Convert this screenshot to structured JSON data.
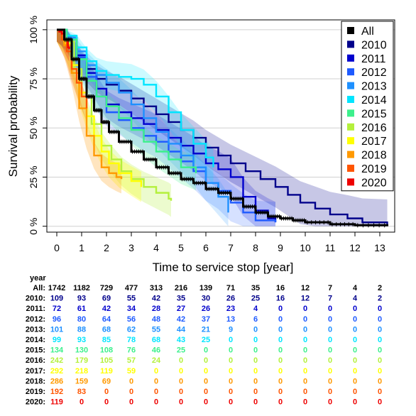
{
  "chart_data": {
    "type": "line",
    "title": "",
    "xlabel": "Time to service stop [year]",
    "ylabel": "Survival probability",
    "xlim": [
      -0.4,
      13.6
    ],
    "ylim": [
      -0.03,
      1.05
    ],
    "x_ticks": [
      0,
      1,
      2,
      3,
      4,
      5,
      6,
      7,
      8,
      9,
      10,
      11,
      12,
      13
    ],
    "x_tick_labels": [
      "0",
      "1",
      "2",
      "3",
      "4",
      "5",
      "6",
      "7",
      "8",
      "9",
      "10",
      "11",
      "12",
      "13"
    ],
    "y_ticks": [
      0,
      0.25,
      0.5,
      0.75,
      1.0
    ],
    "y_tick_labels": [
      "0 %",
      "25 %",
      "50 %",
      "75 %",
      "100 %"
    ],
    "grid": "horizontal",
    "legend_position": "top-right",
    "series": [
      {
        "name": "2010",
        "color": "#00008b",
        "band_opacity": 0.22,
        "points": [
          [
            0,
            1
          ],
          [
            0.4,
            0.96
          ],
          [
            0.8,
            0.86
          ],
          [
            1.2,
            0.8
          ],
          [
            1.6,
            0.75
          ],
          [
            2.0,
            0.72
          ],
          [
            2.5,
            0.69
          ],
          [
            3.0,
            0.65
          ],
          [
            3.5,
            0.61
          ],
          [
            4.0,
            0.57
          ],
          [
            4.5,
            0.53
          ],
          [
            5.0,
            0.49
          ],
          [
            5.5,
            0.45
          ],
          [
            6.0,
            0.4
          ],
          [
            6.5,
            0.36
          ],
          [
            7.0,
            0.32
          ],
          [
            7.6,
            0.28
          ],
          [
            8.2,
            0.24
          ],
          [
            8.8,
            0.2
          ],
          [
            9.3,
            0.16
          ],
          [
            9.8,
            0.12
          ],
          [
            10.4,
            0.09
          ],
          [
            11.0,
            0.06
          ],
          [
            11.7,
            0.04
          ],
          [
            12.3,
            0.02
          ],
          [
            13.3,
            0.01
          ]
        ]
      },
      {
        "name": "2011",
        "color": "#0000cd",
        "band_opacity": 0.2,
        "points": [
          [
            0,
            1
          ],
          [
            0.4,
            0.95
          ],
          [
            0.8,
            0.87
          ],
          [
            1.2,
            0.78
          ],
          [
            1.6,
            0.7
          ],
          [
            2.0,
            0.62
          ],
          [
            2.5,
            0.58
          ],
          [
            3.0,
            0.55
          ],
          [
            3.5,
            0.52
          ],
          [
            4.0,
            0.49
          ],
          [
            4.5,
            0.45
          ],
          [
            5.0,
            0.41
          ],
          [
            5.5,
            0.37
          ],
          [
            6.0,
            0.32
          ],
          [
            6.5,
            0.29
          ],
          [
            7.0,
            0.25
          ],
          [
            7.5,
            0.15
          ],
          [
            8.0,
            0.08
          ],
          [
            8.5,
            0.04
          ],
          [
            8.8,
            0.02
          ]
        ]
      },
      {
        "name": "2012",
        "color": "#1e5aff",
        "band_opacity": 0.18,
        "points": [
          [
            0,
            1
          ],
          [
            0.4,
            0.95
          ],
          [
            0.8,
            0.86
          ],
          [
            1.2,
            0.76
          ],
          [
            1.6,
            0.66
          ],
          [
            2.0,
            0.58
          ],
          [
            2.5,
            0.54
          ],
          [
            3.0,
            0.5
          ],
          [
            3.5,
            0.46
          ],
          [
            4.0,
            0.43
          ],
          [
            4.5,
            0.38
          ],
          [
            5.0,
            0.33
          ],
          [
            5.5,
            0.28
          ],
          [
            6.0,
            0.22
          ],
          [
            6.5,
            0.18
          ],
          [
            7.0,
            0.12
          ],
          [
            7.5,
            0.07
          ],
          [
            8.0,
            0.03
          ],
          [
            8.8,
            0.02
          ]
        ]
      },
      {
        "name": "2013",
        "color": "#1e90ff",
        "band_opacity": 0.18,
        "points": [
          [
            0,
            1
          ],
          [
            0.4,
            0.96
          ],
          [
            0.8,
            0.89
          ],
          [
            1.2,
            0.82
          ],
          [
            1.6,
            0.77
          ],
          [
            2.0,
            0.73
          ],
          [
            2.5,
            0.68
          ],
          [
            3.0,
            0.62
          ],
          [
            3.5,
            0.55
          ],
          [
            4.0,
            0.48
          ],
          [
            4.5,
            0.42
          ],
          [
            5.0,
            0.36
          ],
          [
            5.5,
            0.3
          ],
          [
            6.0,
            0.22
          ],
          [
            6.5,
            0.15
          ],
          [
            6.9,
            0.07
          ]
        ]
      },
      {
        "name": "2014",
        "color": "#00e5ff",
        "band_opacity": 0.2,
        "points": [
          [
            0,
            1
          ],
          [
            0.4,
            0.97
          ],
          [
            0.8,
            0.91
          ],
          [
            1.2,
            0.84
          ],
          [
            1.6,
            0.79
          ],
          [
            2.0,
            0.77
          ],
          [
            2.5,
            0.76
          ],
          [
            3.0,
            0.75
          ],
          [
            3.5,
            0.72
          ],
          [
            4.0,
            0.66
          ],
          [
            4.5,
            0.58
          ],
          [
            5.0,
            0.49
          ],
          [
            5.5,
            0.42
          ],
          [
            6.0,
            0.35
          ],
          [
            6.3,
            0.3
          ]
        ]
      },
      {
        "name": "2015",
        "color": "#3cf08c",
        "band_opacity": 0.22,
        "points": [
          [
            0,
            1
          ],
          [
            0.4,
            0.95
          ],
          [
            0.8,
            0.85
          ],
          [
            1.2,
            0.74
          ],
          [
            1.6,
            0.66
          ],
          [
            2.0,
            0.61
          ],
          [
            2.5,
            0.55
          ],
          [
            3.0,
            0.49
          ],
          [
            3.5,
            0.43
          ],
          [
            4.0,
            0.38
          ],
          [
            4.5,
            0.34
          ],
          [
            5.0,
            0.3
          ],
          [
            5.6,
            0.27
          ]
        ]
      },
      {
        "name": "2016",
        "color": "#b4f03c",
        "band_opacity": 0.25,
        "points": [
          [
            0,
            1
          ],
          [
            0.3,
            0.94
          ],
          [
            0.7,
            0.8
          ],
          [
            1.0,
            0.66
          ],
          [
            1.4,
            0.52
          ],
          [
            1.8,
            0.41
          ],
          [
            2.2,
            0.34
          ],
          [
            2.6,
            0.28
          ],
          [
            3.0,
            0.24
          ],
          [
            3.5,
            0.2
          ],
          [
            4.0,
            0.17
          ],
          [
            4.5,
            0.14
          ],
          [
            4.6,
            0.13
          ]
        ]
      },
      {
        "name": "2017",
        "color": "#ffff00",
        "band_opacity": 0.28,
        "points": [
          [
            0,
            1
          ],
          [
            0.3,
            0.93
          ],
          [
            0.6,
            0.82
          ],
          [
            0.9,
            0.68
          ],
          [
            1.2,
            0.56
          ],
          [
            1.5,
            0.46
          ],
          [
            1.8,
            0.38
          ],
          [
            2.1,
            0.32
          ],
          [
            2.5,
            0.27
          ],
          [
            3.0,
            0.23
          ],
          [
            3.4,
            0.2
          ]
        ]
      },
      {
        "name": "2018",
        "color": "#ff9900",
        "band_opacity": 0.25,
        "points": [
          [
            0,
            1
          ],
          [
            0.3,
            0.92
          ],
          [
            0.6,
            0.78
          ],
          [
            0.9,
            0.6
          ],
          [
            1.2,
            0.46
          ],
          [
            1.5,
            0.36
          ],
          [
            1.8,
            0.3
          ],
          [
            2.1,
            0.27
          ],
          [
            2.4,
            0.25
          ],
          [
            2.6,
            0.24
          ]
        ]
      },
      {
        "name": "2019",
        "color": "#ff5500",
        "band_opacity": 0.25,
        "points": [
          [
            0,
            1
          ],
          [
            0.2,
            0.95
          ],
          [
            0.4,
            0.89
          ],
          [
            0.6,
            0.8
          ],
          [
            0.8,
            0.73
          ],
          [
            1.0,
            0.66
          ],
          [
            1.2,
            0.6
          ]
        ]
      },
      {
        "name": "2020",
        "color": "#ee0000",
        "band_opacity": 0.25,
        "points": [
          [
            0,
            1
          ],
          [
            0.1,
            0.99
          ],
          [
            0.2,
            0.98
          ],
          [
            0.3,
            0.95
          ],
          [
            0.45,
            0.91
          ],
          [
            0.5,
            0.9
          ]
        ]
      },
      {
        "name": "All",
        "color": "#000000",
        "band_opacity": 0,
        "points": [
          [
            0,
            1
          ],
          [
            0.3,
            0.95
          ],
          [
            0.6,
            0.85
          ],
          [
            0.9,
            0.75
          ],
          [
            1.2,
            0.66
          ],
          [
            1.5,
            0.59
          ],
          [
            1.8,
            0.53
          ],
          [
            2.1,
            0.48
          ],
          [
            2.5,
            0.43
          ],
          [
            3.0,
            0.38
          ],
          [
            3.5,
            0.34
          ],
          [
            4.0,
            0.3
          ],
          [
            4.5,
            0.27
          ],
          [
            5.0,
            0.24
          ],
          [
            5.5,
            0.22
          ],
          [
            6.0,
            0.19
          ],
          [
            6.5,
            0.17
          ],
          [
            7.0,
            0.14
          ],
          [
            7.5,
            0.1
          ],
          [
            8.0,
            0.07
          ],
          [
            8.5,
            0.05
          ],
          [
            9.0,
            0.04
          ],
          [
            9.5,
            0.03
          ],
          [
            10.0,
            0.02
          ],
          [
            11.0,
            0.01
          ],
          [
            12.0,
            0.005
          ],
          [
            13.3,
            0.0
          ]
        ]
      }
    ],
    "legend": [
      {
        "name": "All",
        "color": "#000000"
      },
      {
        "name": "2010",
        "color": "#00008b"
      },
      {
        "name": "2011",
        "color": "#0000cd"
      },
      {
        "name": "2012",
        "color": "#1e5aff"
      },
      {
        "name": "2013",
        "color": "#1e90ff"
      },
      {
        "name": "2014",
        "color": "#00e5ff"
      },
      {
        "name": "2015",
        "color": "#3cf08c"
      },
      {
        "name": "2016",
        "color": "#b4f03c"
      },
      {
        "name": "2017",
        "color": "#ffff00"
      },
      {
        "name": "2018",
        "color": "#ff9900"
      },
      {
        "name": "2019",
        "color": "#ff5500"
      },
      {
        "name": "2020",
        "color": "#ee0000"
      }
    ],
    "risk_table": {
      "header": "year",
      "rows": [
        {
          "label": "All:",
          "color": "#000000",
          "values": [
            1742,
            1182,
            729,
            477,
            313,
            216,
            139,
            71,
            35,
            16,
            12,
            7,
            4,
            2
          ]
        },
        {
          "label": "2010:",
          "color": "#00008b",
          "values": [
            109,
            93,
            69,
            55,
            42,
            35,
            30,
            26,
            25,
            16,
            12,
            7,
            4,
            2
          ]
        },
        {
          "label": "2011:",
          "color": "#0000cd",
          "values": [
            72,
            61,
            42,
            34,
            28,
            27,
            26,
            23,
            4,
            0,
            0,
            0,
            0,
            0
          ]
        },
        {
          "label": "2012:",
          "color": "#1e5aff",
          "values": [
            96,
            80,
            64,
            56,
            48,
            42,
            37,
            13,
            6,
            0,
            0,
            0,
            0,
            0
          ]
        },
        {
          "label": "2013:",
          "color": "#1e90ff",
          "values": [
            101,
            88,
            68,
            62,
            55,
            44,
            21,
            9,
            0,
            0,
            0,
            0,
            0,
            0
          ]
        },
        {
          "label": "2014:",
          "color": "#00e5ff",
          "values": [
            99,
            93,
            85,
            78,
            68,
            43,
            25,
            0,
            0,
            0,
            0,
            0,
            0,
            0
          ]
        },
        {
          "label": "2015:",
          "color": "#3cf08c",
          "values": [
            134,
            130,
            108,
            76,
            46,
            25,
            0,
            0,
            0,
            0,
            0,
            0,
            0,
            0
          ]
        },
        {
          "label": "2016:",
          "color": "#b4f03c",
          "values": [
            242,
            179,
            105,
            57,
            24,
            0,
            0,
            0,
            0,
            0,
            0,
            0,
            0,
            0
          ]
        },
        {
          "label": "2017:",
          "color": "#ffff00",
          "values": [
            292,
            218,
            119,
            59,
            0,
            0,
            0,
            0,
            0,
            0,
            0,
            0,
            0,
            0
          ]
        },
        {
          "label": "2018:",
          "color": "#ff9900",
          "values": [
            286,
            159,
            69,
            0,
            0,
            0,
            0,
            0,
            0,
            0,
            0,
            0,
            0,
            0
          ]
        },
        {
          "label": "2019:",
          "color": "#ff5500",
          "values": [
            192,
            83,
            0,
            0,
            0,
            0,
            0,
            0,
            0,
            0,
            0,
            0,
            0,
            0
          ]
        },
        {
          "label": "2020:",
          "color": "#ee0000",
          "values": [
            119,
            0,
            0,
            0,
            0,
            0,
            0,
            0,
            0,
            0,
            0,
            0,
            0,
            0
          ]
        }
      ]
    }
  }
}
